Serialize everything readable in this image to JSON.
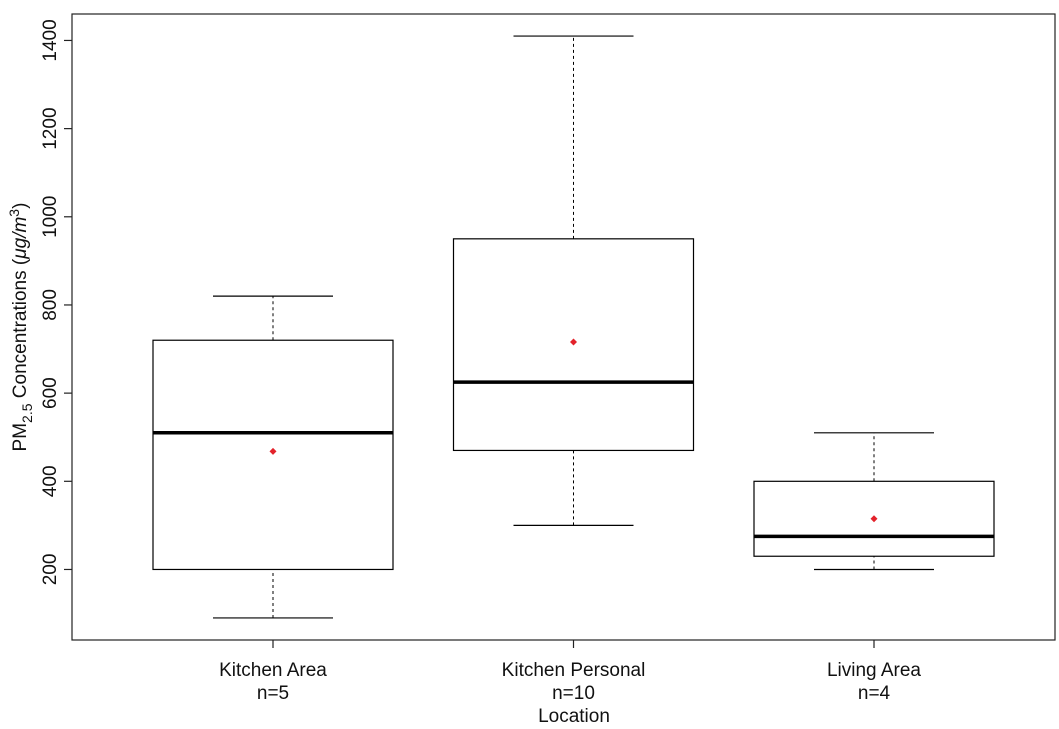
{
  "chart_data": {
    "type": "boxplot",
    "y_label_parts": [
      "PM",
      "2.5",
      " Concentrations (",
      "μg/m",
      "3",
      ")"
    ],
    "x_label": "Location",
    "categories": [
      "Kitchen Area",
      "Kitchen Personal",
      "Living Area"
    ],
    "n_labels": [
      "n=5",
      "n=10",
      "n=4"
    ],
    "boxes": [
      {
        "whislo": 90,
        "q1": 200,
        "med": 510,
        "q3": 720,
        "whishi": 820,
        "mean": 468
      },
      {
        "whislo": 300,
        "q1": 470,
        "med": 625,
        "q3": 950,
        "whishi": 1410,
        "mean": 716
      },
      {
        "whislo": 200,
        "q1": 230,
        "med": 275,
        "q3": 400,
        "whishi": 510,
        "mean": 315
      }
    ],
    "box_color": "#000000",
    "mean_color": "#e3222b",
    "ylim": [
      40,
      1460
    ],
    "yticks": [
      200,
      400,
      600,
      800,
      1000,
      1200,
      1400
    ]
  }
}
